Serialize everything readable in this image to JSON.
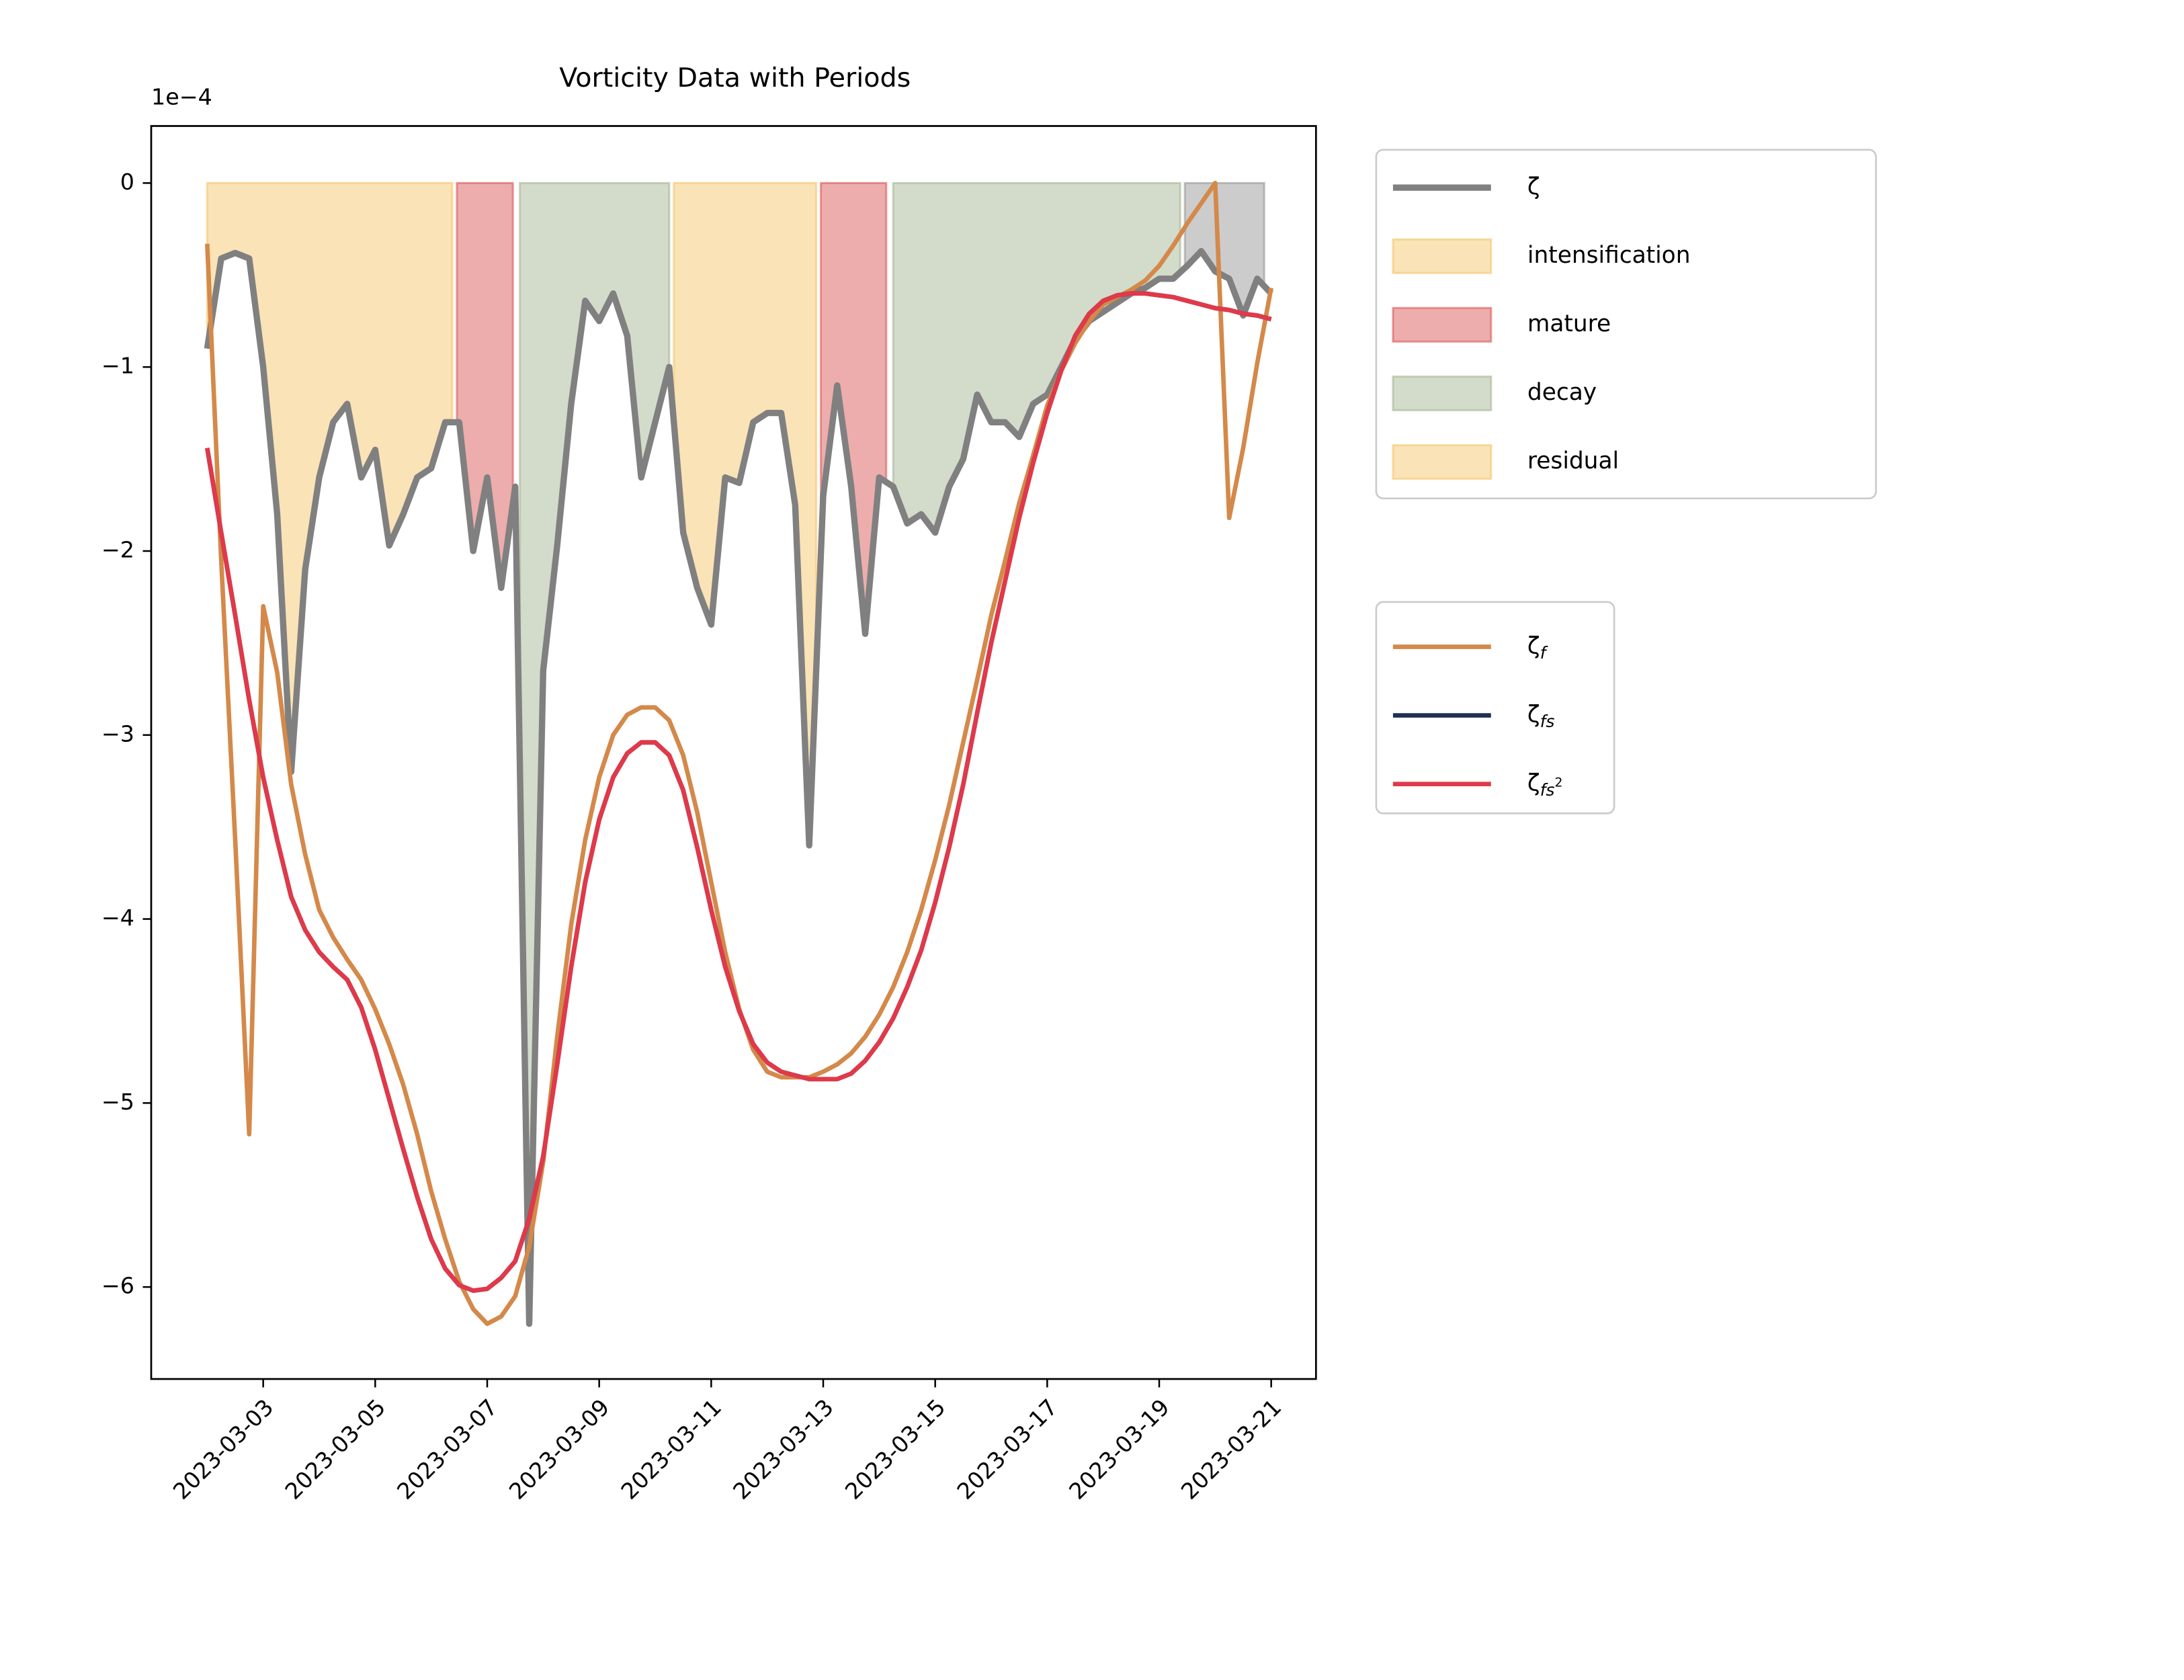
{
  "chart_data": {
    "type": "line",
    "title": "Vorticity Data with Periods",
    "y_offset_label": "1e−4",
    "legend": "outside right",
    "x": [
      "2023-03-02 00:00",
      "2023-03-02 06:00",
      "2023-03-02 12:00",
      "2023-03-02 18:00",
      "2023-03-03 00:00",
      "2023-03-03 06:00",
      "2023-03-03 12:00",
      "2023-03-03 18:00",
      "2023-03-04 00:00",
      "2023-03-04 06:00",
      "2023-03-04 12:00",
      "2023-03-04 18:00",
      "2023-03-05 00:00",
      "2023-03-05 06:00",
      "2023-03-05 12:00",
      "2023-03-05 18:00",
      "2023-03-06 00:00",
      "2023-03-06 06:00",
      "2023-03-06 12:00",
      "2023-03-06 18:00",
      "2023-03-07 00:00",
      "2023-03-07 06:00",
      "2023-03-07 12:00",
      "2023-03-07 18:00",
      "2023-03-08 00:00",
      "2023-03-08 06:00",
      "2023-03-08 12:00",
      "2023-03-08 18:00",
      "2023-03-09 00:00",
      "2023-03-09 06:00",
      "2023-03-09 12:00",
      "2023-03-09 18:00",
      "2023-03-10 00:00",
      "2023-03-10 06:00",
      "2023-03-10 12:00",
      "2023-03-10 18:00",
      "2023-03-11 00:00",
      "2023-03-11 06:00",
      "2023-03-11 12:00",
      "2023-03-11 18:00",
      "2023-03-12 00:00",
      "2023-03-12 06:00",
      "2023-03-12 12:00",
      "2023-03-12 18:00",
      "2023-03-13 00:00",
      "2023-03-13 06:00",
      "2023-03-13 12:00",
      "2023-03-13 18:00",
      "2023-03-14 00:00",
      "2023-03-14 06:00",
      "2023-03-14 12:00",
      "2023-03-14 18:00",
      "2023-03-15 00:00",
      "2023-03-15 06:00",
      "2023-03-15 12:00",
      "2023-03-15 18:00",
      "2023-03-16 00:00",
      "2023-03-16 06:00",
      "2023-03-16 12:00",
      "2023-03-16 18:00",
      "2023-03-17 00:00",
      "2023-03-17 06:00",
      "2023-03-17 12:00",
      "2023-03-17 18:00",
      "2023-03-18 00:00",
      "2023-03-18 06:00",
      "2023-03-18 12:00",
      "2023-03-18 18:00",
      "2023-03-19 00:00",
      "2023-03-19 06:00",
      "2023-03-19 12:00",
      "2023-03-19 18:00",
      "2023-03-20 00:00",
      "2023-03-20 06:00",
      "2023-03-20 12:00",
      "2023-03-20 18:00",
      "2023-03-21 00:00"
    ],
    "xlim": [
      "2023-03-01 00:00",
      "2023-03-21 19:12"
    ],
    "xticks": [
      "2023-03-03",
      "2023-03-05",
      "2023-03-07",
      "2023-03-09",
      "2023-03-11",
      "2023-03-13",
      "2023-03-15",
      "2023-03-17",
      "2023-03-19",
      "2023-03-21"
    ],
    "ylim": [
      -6.5,
      0.31
    ],
    "yticks": [
      0,
      {
        "value": -1,
        "label": "−1"
      },
      {
        "value": -2,
        "label": "−2"
      },
      {
        "value": -3,
        "label": "−3"
      },
      {
        "value": -4,
        "label": "−4"
      },
      {
        "value": -5,
        "label": "−5"
      },
      {
        "value": -6,
        "label": "−6"
      }
    ],
    "series": [
      {
        "name": "ζ",
        "color": "#808080",
        "values": [
          -0.9,
          -0.41,
          -0.38,
          -0.41,
          -1.0,
          -1.8,
          -3.2,
          -2.1,
          -1.6,
          -1.3,
          -1.2,
          -1.6,
          -1.45,
          -1.97,
          -1.8,
          -1.6,
          -1.55,
          -1.3,
          -1.3,
          -2.0,
          -1.6,
          -2.2,
          -1.65,
          -6.2,
          -2.65,
          -1.97,
          -1.2,
          -0.64,
          -0.75,
          -0.6,
          -0.83,
          -1.6,
          -1.3,
          -1.0,
          -1.9,
          -2.2,
          -2.4,
          -1.6,
          -1.63,
          -1.3,
          -1.25,
          -1.25,
          -1.75,
          -3.6,
          -1.7,
          -1.1,
          -1.65,
          -2.45,
          -1.6,
          -1.65,
          -1.85,
          -1.8,
          -1.9,
          -1.65,
          -1.5,
          -1.15,
          -1.3,
          -1.3,
          -1.38,
          -1.2,
          -1.15,
          -1.0,
          -0.85,
          -0.75,
          -0.7,
          -0.65,
          -0.6,
          -0.57,
          -0.52,
          -0.52,
          -0.45,
          -0.37,
          -0.48,
          -0.52,
          -0.72,
          -0.52,
          -0.6
        ]
      },
      {
        "name": "ζ",
        "subscript": "f",
        "color": "#d4894a",
        "values": [
          -0.33,
          -2.05,
          -3.57,
          -5.17,
          -2.3,
          -2.66,
          -3.27,
          -3.65,
          -3.95,
          -4.1,
          -4.22,
          -4.33,
          -4.49,
          -4.68,
          -4.9,
          -5.17,
          -5.48,
          -5.74,
          -5.97,
          -6.12,
          -6.2,
          -6.16,
          -6.05,
          -5.78,
          -5.32,
          -4.64,
          -4.03,
          -3.57,
          -3.23,
          -3.0,
          -2.89,
          -2.85,
          -2.85,
          -2.92,
          -3.11,
          -3.42,
          -3.8,
          -4.18,
          -4.49,
          -4.71,
          -4.83,
          -4.86,
          -4.86,
          -4.86,
          -4.83,
          -4.79,
          -4.73,
          -4.64,
          -4.52,
          -4.37,
          -4.18,
          -3.95,
          -3.68,
          -3.38,
          -3.04,
          -2.7,
          -2.35,
          -2.05,
          -1.74,
          -1.48,
          -1.21,
          -1.02,
          -0.87,
          -0.75,
          -0.66,
          -0.62,
          -0.58,
          -0.53,
          -0.45,
          -0.34,
          -0.22,
          -0.11,
          0,
          -1.82,
          -1.44,
          -0.98,
          -0.57
        ]
      },
      {
        "name": "ζ",
        "subscript": "fs",
        "color": "#1f3050",
        "values": [
          -1.44,
          -1.9,
          -2.35,
          -2.81,
          -3.23,
          -3.57,
          -3.88,
          -4.06,
          -4.18,
          -4.26,
          -4.33,
          -4.48,
          -4.71,
          -4.98,
          -5.25,
          -5.51,
          -5.74,
          -5.9,
          -5.99,
          -6.02,
          -6.01,
          -5.95,
          -5.86,
          -5.63,
          -5.29,
          -4.79,
          -4.26,
          -3.8,
          -3.46,
          -3.23,
          -3.1,
          -3.04,
          -3.04,
          -3.11,
          -3.3,
          -3.61,
          -3.95,
          -4.26,
          -4.5,
          -4.68,
          -4.78,
          -4.83,
          -4.85,
          -4.87,
          -4.87,
          -4.87,
          -4.84,
          -4.77,
          -4.67,
          -4.54,
          -4.37,
          -4.17,
          -3.91,
          -3.61,
          -3.27,
          -2.88,
          -2.5,
          -2.16,
          -1.82,
          -1.52,
          -1.25,
          -1.02,
          -0.83,
          -0.71,
          -0.64,
          -0.61,
          -0.6,
          -0.6,
          -0.61,
          -0.62,
          -0.64,
          -0.66,
          -0.68,
          -0.69,
          -0.71,
          -0.72,
          -0.74
        ]
      },
      {
        "name": "ζ",
        "subscript": "fs",
        "superscript": "2",
        "color": "#e0394a",
        "values": [
          -1.44,
          -1.9,
          -2.35,
          -2.81,
          -3.23,
          -3.57,
          -3.88,
          -4.06,
          -4.18,
          -4.26,
          -4.33,
          -4.48,
          -4.71,
          -4.98,
          -5.25,
          -5.51,
          -5.74,
          -5.9,
          -5.99,
          -6.02,
          -6.01,
          -5.95,
          -5.86,
          -5.63,
          -5.29,
          -4.79,
          -4.26,
          -3.8,
          -3.46,
          -3.23,
          -3.1,
          -3.04,
          -3.04,
          -3.11,
          -3.3,
          -3.61,
          -3.95,
          -4.26,
          -4.5,
          -4.68,
          -4.78,
          -4.83,
          -4.85,
          -4.87,
          -4.87,
          -4.87,
          -4.84,
          -4.77,
          -4.67,
          -4.54,
          -4.37,
          -4.17,
          -3.91,
          -3.61,
          -3.27,
          -2.88,
          -2.5,
          -2.16,
          -1.82,
          -1.52,
          -1.25,
          -1.02,
          -0.83,
          -0.71,
          -0.64,
          -0.61,
          -0.6,
          -0.6,
          -0.61,
          -0.62,
          -0.64,
          -0.66,
          -0.68,
          -0.69,
          -0.71,
          -0.72,
          -0.74
        ]
      }
    ],
    "phases": [
      {
        "name": "intensification",
        "color": "#f5c76f",
        "spans": [
          [
            "2023-03-02 00:00",
            "2023-03-06 09:00"
          ],
          [
            "2023-03-10 08:00",
            "2023-03-12 21:00"
          ]
        ]
      },
      {
        "name": "mature",
        "color": "#dc5c5c",
        "spans": [
          [
            "2023-03-06 11:00",
            "2023-03-07 11:00"
          ],
          [
            "2023-03-12 23:00",
            "2023-03-14 03:00"
          ]
        ]
      },
      {
        "name": "decay",
        "color": "#a8b896",
        "spans": [
          [
            "2023-03-07 14:00",
            "2023-03-10 06:00"
          ],
          [
            "2023-03-14 06:00",
            "2023-03-19 09:00"
          ]
        ]
      },
      {
        "name": "residual",
        "color": "#999999",
        "legend_color": "#f5c76f",
        "spans": [
          [
            "2023-03-19 11:00",
            "2023-03-20 21:00"
          ]
        ]
      }
    ]
  }
}
